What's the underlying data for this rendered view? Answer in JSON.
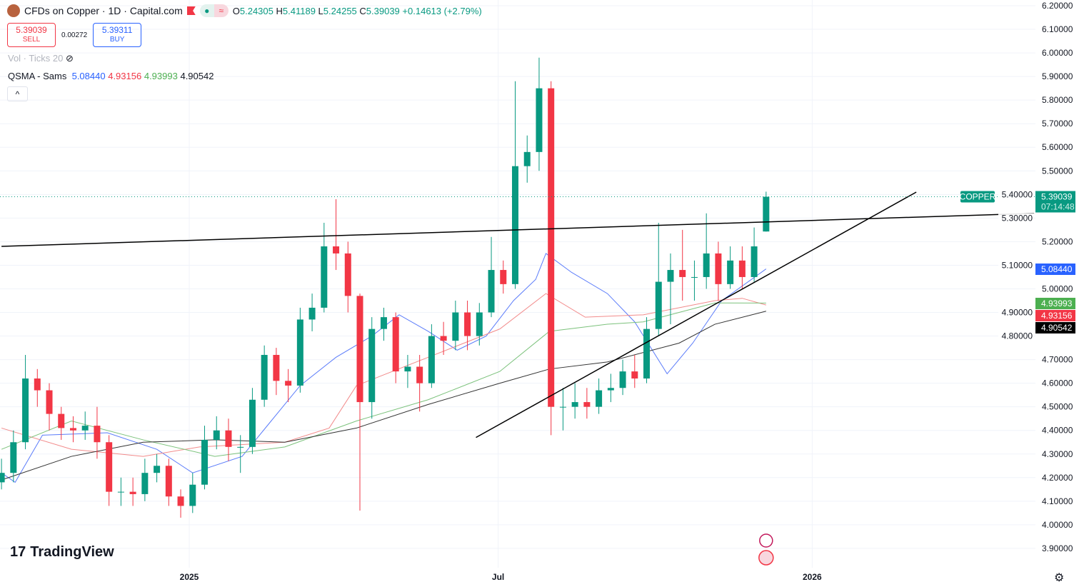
{
  "header": {
    "title": "CFDs on Copper · 1D · Capital.com",
    "open_label": "O",
    "open": "5.24305",
    "high_label": "H",
    "high": "5.41189",
    "low_label": "L",
    "low": "5.24255",
    "close_label": "C",
    "close": "5.39039",
    "change": "+0.14613 (+2.79%)",
    "market_status_icon": "dot-icon",
    "wave_icon": "≈"
  },
  "trade": {
    "sell_price": "5.39039",
    "sell_label": "SELL",
    "spread": "0.00272",
    "buy_price": "5.39311",
    "buy_label": "BUY"
  },
  "indicators": {
    "vol": "Vol · Ticks 20",
    "qsma_name": "QSMA - Sams",
    "qsma_values": [
      "5.08440",
      "4.93156",
      "4.93993",
      "4.90542"
    ]
  },
  "branding": {
    "logo": "TradingView"
  },
  "colors": {
    "up": "#089981",
    "down": "#f23645",
    "ma_fast": "#5b7cfa",
    "ma_mid": "#f28b8b",
    "ma_slow": "#7cc27c",
    "ma_long": "#333333",
    "price_line": "#089981"
  },
  "chart_data": {
    "type": "candlestick",
    "symbol_label": "COPPER",
    "last_price": "5.39039",
    "countdown": "07:14:48",
    "ylim": [
      3.9,
      6.2
    ],
    "y_ticks": [
      "6.20000",
      "6.10000",
      "6.00000",
      "5.90000",
      "5.80000",
      "5.70000",
      "5.60000",
      "5.50000",
      "5.40000",
      "5.30000",
      "5.20000",
      "5.10000",
      "5.00000",
      "4.90000",
      "4.80000",
      "4.70000",
      "4.60000",
      "4.50000",
      "4.40000",
      "4.30000",
      "4.20000",
      "4.10000",
      "4.00000",
      "3.90000"
    ],
    "x_ticks": [
      {
        "label": "2025",
        "date": "2025-01-01"
      },
      {
        "label": "Jul",
        "date": "2025-07-01"
      },
      {
        "label": "2026",
        "date": "2026-01-01"
      }
    ],
    "dates": [
      "2024-09-13",
      "2024-09-20",
      "2024-09-27",
      "2024-10-04",
      "2024-10-11",
      "2024-10-18",
      "2024-10-25",
      "2024-11-01",
      "2024-11-08",
      "2024-11-15",
      "2024-11-22",
      "2024-11-29",
      "2024-12-06",
      "2024-12-13",
      "2024-12-20",
      "2024-12-27",
      "2025-01-03",
      "2025-01-10",
      "2025-01-17",
      "2025-01-24",
      "2025-01-31",
      "2025-02-07",
      "2025-02-14",
      "2025-02-21",
      "2025-02-28",
      "2025-03-07",
      "2025-03-14",
      "2025-03-21",
      "2025-03-28",
      "2025-04-04",
      "2025-04-11",
      "2025-04-18",
      "2025-04-25",
      "2025-05-02",
      "2025-05-09",
      "2025-05-16",
      "2025-05-23",
      "2025-05-30",
      "2025-06-06",
      "2025-06-13",
      "2025-06-20",
      "2025-06-27",
      "2025-07-04",
      "2025-07-11",
      "2025-07-18",
      "2025-07-25",
      "2025-08-01",
      "2025-08-08",
      "2025-08-15",
      "2025-08-22",
      "2025-08-29",
      "2025-09-05",
      "2025-09-12",
      "2025-09-19",
      "2025-09-26",
      "2025-10-03",
      "2025-10-10",
      "2025-10-17",
      "2025-10-24",
      "2025-10-31",
      "2025-11-07",
      "2025-11-14",
      "2025-11-21",
      "2025-11-28",
      "2025-12-05"
    ],
    "open": [
      4.18,
      4.22,
      4.35,
      4.62,
      4.57,
      4.47,
      4.41,
      4.4,
      4.42,
      4.35,
      4.14,
      4.14,
      4.13,
      4.22,
      4.25,
      4.12,
      4.08,
      4.17,
      4.36,
      4.4,
      4.33,
      4.33,
      4.53,
      4.72,
      4.61,
      4.59,
      4.87,
      4.92,
      5.18,
      5.15,
      4.97,
      4.52,
      4.83,
      4.88,
      4.65,
      4.67,
      4.6,
      4.8,
      4.78,
      4.9,
      4.8,
      4.9,
      5.08,
      5.02,
      5.52,
      5.58,
      5.85,
      4.5,
      4.5,
      4.52,
      4.5,
      4.57,
      4.58,
      4.65,
      4.62,
      4.83,
      5.03,
      5.08,
      5.05,
      5.05,
      5.15,
      5.02,
      5.12,
      5.05,
      5.24305
    ],
    "high": [
      4.28,
      4.4,
      4.72,
      4.66,
      4.6,
      4.5,
      4.46,
      4.48,
      4.5,
      4.38,
      4.2,
      4.2,
      4.28,
      4.3,
      4.28,
      4.15,
      4.22,
      4.42,
      4.46,
      4.45,
      4.38,
      4.58,
      4.76,
      4.75,
      4.66,
      4.92,
      4.98,
      5.28,
      5.38,
      5.2,
      4.98,
      4.88,
      4.92,
      4.9,
      4.72,
      4.72,
      4.85,
      4.86,
      4.95,
      4.95,
      4.94,
      5.22,
      5.12,
      5.88,
      5.65,
      5.98,
      5.88,
      4.58,
      4.6,
      4.58,
      4.62,
      4.64,
      4.7,
      4.72,
      4.88,
      5.28,
      5.15,
      5.25,
      5.12,
      5.32,
      5.2,
      5.18,
      5.18,
      5.26,
      5.41189
    ],
    "low": [
      4.15,
      4.18,
      4.32,
      4.5,
      4.4,
      4.36,
      4.35,
      4.36,
      4.28,
      4.08,
      4.08,
      4.08,
      4.1,
      4.18,
      4.08,
      4.03,
      4.05,
      4.15,
      4.32,
      4.27,
      4.22,
      4.3,
      4.5,
      4.55,
      4.52,
      4.56,
      4.82,
      4.9,
      5.08,
      4.9,
      4.06,
      4.45,
      4.78,
      4.6,
      4.58,
      4.48,
      4.58,
      4.72,
      4.74,
      4.74,
      4.76,
      4.88,
      4.98,
      5.0,
      5.45,
      5.5,
      4.38,
      4.4,
      4.45,
      4.45,
      4.47,
      4.52,
      4.55,
      4.58,
      4.6,
      4.8,
      4.85,
      4.95,
      4.95,
      5.0,
      4.95,
      5.0,
      5.0,
      5.03,
      5.24255
    ],
    "close": [
      4.22,
      4.35,
      4.62,
      4.57,
      4.47,
      4.41,
      4.4,
      4.42,
      4.35,
      4.14,
      4.14,
      4.13,
      4.22,
      4.25,
      4.12,
      4.08,
      4.17,
      4.36,
      4.4,
      4.33,
      4.33,
      4.53,
      4.72,
      4.61,
      4.59,
      4.87,
      4.92,
      5.18,
      5.15,
      4.97,
      4.52,
      4.83,
      4.88,
      4.65,
      4.67,
      4.6,
      4.8,
      4.78,
      4.9,
      4.8,
      4.9,
      5.08,
      5.02,
      5.52,
      5.58,
      5.85,
      4.5,
      4.5,
      4.52,
      4.5,
      4.57,
      4.58,
      4.65,
      4.62,
      4.83,
      5.03,
      5.08,
      5.05,
      5.05,
      5.15,
      5.02,
      5.12,
      5.05,
      5.18,
      5.39039
    ],
    "moving_averages": [
      {
        "label": "5.08440",
        "color": "#5b7cfa",
        "label_bg": "#2962ff",
        "points": [
          [
            "2024-09-13",
            4.22
          ],
          [
            "2024-09-21",
            4.18
          ],
          [
            "2024-10-07",
            4.38
          ],
          [
            "2024-11-14",
            4.39
          ],
          [
            "2024-12-13",
            4.32
          ],
          [
            "2025-01-03",
            4.22
          ],
          [
            "2025-02-01",
            4.29
          ],
          [
            "2025-02-18",
            4.44
          ],
          [
            "2025-03-07",
            4.59
          ],
          [
            "2025-03-28",
            4.71
          ],
          [
            "2025-04-18",
            4.8
          ],
          [
            "2025-05-04",
            4.89
          ],
          [
            "2025-05-21",
            4.82
          ],
          [
            "2025-06-07",
            4.74
          ],
          [
            "2025-06-24",
            4.8
          ],
          [
            "2025-07-10",
            4.95
          ],
          [
            "2025-07-23",
            5.04
          ],
          [
            "2025-07-29",
            5.15
          ],
          [
            "2025-08-13",
            5.07
          ],
          [
            "2025-09-03",
            4.98
          ],
          [
            "2025-09-19",
            4.86
          ],
          [
            "2025-10-08",
            4.64
          ],
          [
            "2025-10-23",
            4.77
          ],
          [
            "2025-11-09",
            4.95
          ],
          [
            "2025-12-05",
            5.0844
          ]
        ]
      },
      {
        "label": "4.93156",
        "color": "#f28b8b",
        "label_bg": "#f23645",
        "points": [
          [
            "2024-09-13",
            4.41
          ],
          [
            "2024-10-24",
            4.32
          ],
          [
            "2024-12-05",
            4.29
          ],
          [
            "2025-01-07",
            4.33
          ],
          [
            "2025-02-26",
            4.35
          ],
          [
            "2025-03-24",
            4.41
          ],
          [
            "2025-04-09",
            4.59
          ],
          [
            "2025-05-21",
            4.71
          ],
          [
            "2025-07-02",
            4.83
          ],
          [
            "2025-07-29",
            4.98
          ],
          [
            "2025-08-21",
            4.88
          ],
          [
            "2025-09-24",
            4.89
          ],
          [
            "2025-11-05",
            4.95
          ],
          [
            "2025-11-21",
            4.96
          ],
          [
            "2025-12-05",
            4.93156
          ]
        ]
      },
      {
        "label": "4.93993",
        "color": "#7cc27c",
        "label_bg": "#4caf50",
        "points": [
          [
            "2024-09-13",
            4.32
          ],
          [
            "2024-10-24",
            4.44
          ],
          [
            "2024-12-05",
            4.36
          ],
          [
            "2025-01-16",
            4.29
          ],
          [
            "2025-02-26",
            4.33
          ],
          [
            "2025-04-09",
            4.44
          ],
          [
            "2025-05-21",
            4.53
          ],
          [
            "2025-07-02",
            4.65
          ],
          [
            "2025-07-31",
            4.82
          ],
          [
            "2025-09-03",
            4.85
          ],
          [
            "2025-09-24",
            4.86
          ],
          [
            "2025-11-05",
            4.94
          ],
          [
            "2025-12-05",
            4.93993
          ]
        ]
      },
      {
        "label": "4.90542",
        "color": "#333333",
        "label_bg": "#000000",
        "points": [
          [
            "2024-09-13",
            4.19
          ],
          [
            "2024-10-24",
            4.29
          ],
          [
            "2024-12-05",
            4.35
          ],
          [
            "2025-01-16",
            4.36
          ],
          [
            "2025-02-26",
            4.35
          ],
          [
            "2025-04-09",
            4.41
          ],
          [
            "2025-05-21",
            4.51
          ],
          [
            "2025-07-02",
            4.6
          ],
          [
            "2025-07-31",
            4.66
          ],
          [
            "2025-09-03",
            4.69
          ],
          [
            "2025-10-15",
            4.77
          ],
          [
            "2025-11-05",
            4.85
          ],
          [
            "2025-12-05",
            4.90542
          ]
        ]
      }
    ],
    "trendlines": [
      {
        "from": [
          "2024-09-13",
          5.18
        ],
        "to": [
          "2026-05-11",
          5.32
        ]
      },
      {
        "from": [
          "2025-06-18",
          4.37
        ],
        "to": [
          "2026-03-03",
          5.41
        ]
      }
    ]
  }
}
